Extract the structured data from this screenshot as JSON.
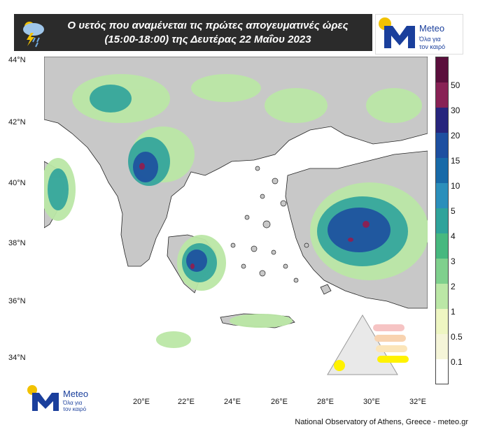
{
  "header": {
    "title_line1": "Ο υετός που αναμένεται τις πρώτες απογευματινές ώρες",
    "title_line2": "(15:00-18:00) της Δευτέρας 22 Μαΐου 2023",
    "weather_icon": "rain-cloud-lightning-icon"
  },
  "logo": {
    "brand": "Meteo",
    "tagline_line1": "Όλα για",
    "tagline_line2": "τον καιρό",
    "colors": {
      "yellow": "#f2c200",
      "blue": "#1a3f9c"
    }
  },
  "map": {
    "lat_labels": [
      "44°N",
      "42°N",
      "40°N",
      "38°N",
      "36°N",
      "34°N"
    ],
    "lon_labels": [
      "20°E",
      "22°E",
      "24°E",
      "26°E",
      "28°E",
      "30°E",
      "32°E"
    ],
    "colors": {
      "sea": "#ffffff",
      "land": "#c8c8c8"
    }
  },
  "colorbar": {
    "labels": [
      "50",
      "30",
      "20",
      "15",
      "10",
      "5",
      "4",
      "3",
      "2",
      "1",
      "0.5",
      "0.1"
    ],
    "colors": [
      "#5a0f3c",
      "#882255",
      "#27257d",
      "#1d4fa0",
      "#186aa8",
      "#2b8fbb",
      "#2fa39b",
      "#47b87f",
      "#7fd08d",
      "#bbe7a6",
      "#eef6c2",
      "#f5f5d8",
      "#ffffff"
    ]
  },
  "credit": "National Observatory of Athens, Greece - meteo.gr"
}
